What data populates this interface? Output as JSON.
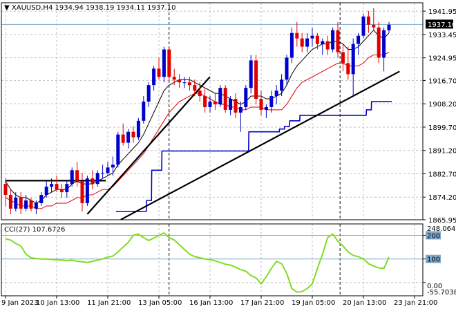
{
  "header": {
    "symbol_timeframe": "XAUUSD,H4",
    "ohlc": "1934.94 1938.19 1934.11 1937.10"
  },
  "current_price_label": "1937.10",
  "cci": {
    "label": "CCI(27) 107.6726",
    "value": 107.6726,
    "period": 27,
    "scale_max_label": "248.0641",
    "scale_min_label": "-55.7038",
    "y_ticks": [
      "200",
      "100",
      "0.00"
    ],
    "levels": [
      200,
      100
    ]
  },
  "colors": {
    "up_candle": "#0000cc",
    "down_candle": "#e00000",
    "fast_ma": "#000000",
    "slow_ma": "#e00000",
    "stop_line": "#0000cc",
    "trendline": "#000000",
    "cci_line": "#7fdd22",
    "cci_level": "#7fa7c9",
    "grid": "#c0c0c0",
    "price_tag_bg": "#000000"
  },
  "chart_data": [
    {
      "type": "candlestick",
      "symbol": "XAUUSD",
      "timeframe": "H4",
      "ylim": [
        1865.95,
        1945.0
      ],
      "y_ticks": [
        "1941.95",
        "1933.45",
        "1924.95",
        "1916.70",
        "1908.20",
        "1899.70",
        "1891.20",
        "1882.70",
        "1874.20",
        "1865.95"
      ],
      "x_ticks": [
        "9 Jan 2023",
        "10 Jan 13:00",
        "11 Jan 21:00",
        "13 Jan 05:00",
        "16 Jan 13:00",
        "17 Jan 21:00",
        "19 Jan 05:00",
        "20 Jan 13:00",
        "23 Jan 21:00"
      ],
      "candles": [
        [
          1879,
          1881,
          1871,
          1875
        ],
        [
          1875,
          1877,
          1868,
          1870
        ],
        [
          1870,
          1876,
          1869,
          1874
        ],
        [
          1874,
          1876,
          1868,
          1870
        ],
        [
          1870,
          1875,
          1869,
          1873
        ],
        [
          1873,
          1874,
          1869,
          1870
        ],
        [
          1870,
          1873,
          1868,
          1872
        ],
        [
          1872,
          1876,
          1871,
          1875
        ],
        [
          1875,
          1880,
          1874,
          1878
        ],
        [
          1878,
          1881,
          1876,
          1879
        ],
        [
          1879,
          1882,
          1876,
          1877
        ],
        [
          1877,
          1879,
          1874,
          1876
        ],
        [
          1876,
          1880,
          1874,
          1879
        ],
        [
          1879,
          1885,
          1878,
          1884
        ],
        [
          1884,
          1887,
          1878,
          1880
        ],
        [
          1880,
          1883,
          1869,
          1872
        ],
        [
          1872,
          1882,
          1871,
          1881
        ],
        [
          1881,
          1884,
          1877,
          1879
        ],
        [
          1879,
          1884,
          1878,
          1883
        ],
        [
          1883,
          1886,
          1881,
          1883
        ],
        [
          1883,
          1887,
          1882,
          1885
        ],
        [
          1885,
          1889,
          1882,
          1886
        ],
        [
          1886,
          1898,
          1885,
          1897
        ],
        [
          1897,
          1901,
          1893,
          1894
        ],
        [
          1894,
          1899,
          1892,
          1898
        ],
        [
          1898,
          1900,
          1894,
          1896
        ],
        [
          1896,
          1903,
          1895,
          1902
        ],
        [
          1902,
          1911,
          1901,
          1909
        ],
        [
          1909,
          1916,
          1907,
          1915
        ],
        [
          1915,
          1922,
          1913,
          1921
        ],
        [
          1921,
          1925,
          1917,
          1918
        ],
        [
          1918,
          1929,
          1916,
          1928
        ],
        [
          1928,
          1929,
          1916,
          1918
        ],
        [
          1918,
          1921,
          1915,
          1917
        ],
        [
          1917,
          1919,
          1914,
          1916
        ],
        [
          1916,
          1918,
          1914,
          1916
        ],
        [
          1916,
          1918,
          1913,
          1915
        ],
        [
          1915,
          1917,
          1911,
          1913
        ],
        [
          1913,
          1916,
          1909,
          1911
        ],
        [
          1911,
          1914,
          1905,
          1907
        ],
        [
          1907,
          1911,
          1905,
          1909
        ],
        [
          1909,
          1912,
          1906,
          1908
        ],
        [
          1908,
          1915,
          1907,
          1914
        ],
        [
          1914,
          1915,
          1905,
          1906
        ],
        [
          1906,
          1911,
          1904,
          1910
        ],
        [
          1910,
          1912,
          1903,
          1905
        ],
        [
          1905,
          1909,
          1898,
          1907
        ],
        [
          1907,
          1915,
          1906,
          1914
        ],
        [
          1914,
          1926,
          1912,
          1924
        ],
        [
          1924,
          1926,
          1908,
          1910
        ],
        [
          1910,
          1913,
          1904,
          1906
        ],
        [
          1906,
          1908,
          1903,
          1907
        ],
        [
          1907,
          1913,
          1905,
          1911
        ],
        [
          1911,
          1915,
          1908,
          1913
        ],
        [
          1913,
          1919,
          1911,
          1917
        ],
        [
          1917,
          1926,
          1915,
          1925
        ],
        [
          1925,
          1936,
          1923,
          1934
        ],
        [
          1934,
          1938,
          1929,
          1932
        ],
        [
          1932,
          1934,
          1927,
          1929
        ],
        [
          1929,
          1934,
          1927,
          1932
        ],
        [
          1932,
          1936,
          1929,
          1933
        ],
        [
          1933,
          1934,
          1928,
          1930
        ],
        [
          1930,
          1932,
          1926,
          1931
        ],
        [
          1931,
          1933,
          1926,
          1928
        ],
        [
          1928,
          1936,
          1927,
          1935
        ],
        [
          1935,
          1938,
          1925,
          1927
        ],
        [
          1927,
          1930,
          1920,
          1923
        ],
        [
          1923,
          1929,
          1917,
          1919
        ],
        [
          1919,
          1932,
          1911,
          1930
        ],
        [
          1930,
          1934,
          1926,
          1933
        ],
        [
          1933,
          1941,
          1932,
          1940
        ],
        [
          1940,
          1942,
          1934,
          1937
        ],
        [
          1937,
          1943,
          1935,
          1936
        ],
        [
          1936,
          1938,
          1923,
          1925
        ],
        [
          1925,
          1936,
          1920,
          1935
        ],
        [
          1935,
          1938,
          1934,
          1937
        ]
      ],
      "fast_ma": [
        1880,
        1877,
        1875,
        1874,
        1874,
        1873,
        1872,
        1873,
        1875,
        1876,
        1877,
        1877,
        1877,
        1879,
        1880,
        1879,
        1879,
        1879,
        1880,
        1881,
        1882,
        1883,
        1886,
        1888,
        1890,
        1892,
        1894,
        1897,
        1901,
        1905,
        1909,
        1913,
        1915,
        1916,
        1917,
        1917,
        1917,
        1916,
        1915,
        1914,
        1913,
        1912,
        1912,
        1911,
        1910,
        1909,
        1908,
        1909,
        1911,
        1911,
        1911,
        1910,
        1910,
        1911,
        1912,
        1915,
        1919,
        1922,
        1924,
        1926,
        1928,
        1929,
        1930,
        1930,
        1931,
        1931,
        1930,
        1928,
        1928,
        1929,
        1931,
        1933,
        1935,
        1933,
        1932,
        1934
      ],
      "slow_ma": [
        1874,
        1873,
        1872,
        1871,
        1871,
        1871,
        1870,
        1870,
        1871,
        1871,
        1872,
        1872,
        1872,
        1873,
        1874,
        1874,
        1875,
        1875,
        1876,
        1877,
        1877,
        1878,
        1880,
        1882,
        1884,
        1886,
        1888,
        1890,
        1893,
        1896,
        1899,
        1902,
        1905,
        1907,
        1909,
        1910,
        1911,
        1912,
        1912,
        1911,
        1910,
        1909,
        1908,
        1908,
        1907,
        1907,
        1906,
        1906,
        1907,
        1907,
        1907,
        1906,
        1906,
        1906,
        1906,
        1908,
        1911,
        1914,
        1916,
        1917,
        1918,
        1919,
        1920,
        1921,
        1922,
        1923,
        1923,
        1922,
        1922,
        1922,
        1923,
        1925,
        1926,
        1926,
        1926,
        1927
      ],
      "stop_line": [
        null,
        null,
        null,
        null,
        null,
        null,
        null,
        null,
        null,
        null,
        null,
        null,
        null,
        null,
        null,
        null,
        null,
        null,
        null,
        null,
        null,
        null,
        1869,
        1869,
        1869,
        1869,
        1869,
        1869,
        1873,
        1884,
        1884,
        1891,
        1891,
        1891,
        1891,
        1891,
        1891,
        1891,
        1891,
        1891,
        1891,
        1891,
        1891,
        1891,
        1891,
        1891,
        1891,
        1891,
        1898,
        1898,
        1898,
        1898,
        1898,
        1898,
        1899,
        1900,
        1902,
        1902,
        1904,
        1904,
        1904,
        1904,
        1904,
        1904,
        1904,
        1904,
        1904,
        1904,
        1904,
        1904,
        1904,
        1906,
        1909,
        1909,
        1909,
        1909
      ],
      "trendlines": [
        {
          "from": [
            0,
            1880.2
          ],
          "to": [
            27,
            1880.2
          ]
        },
        {
          "from": [
            22,
            1868
          ],
          "to": [
            55,
            1918
          ]
        },
        {
          "from": [
            31,
            1866
          ],
          "to": [
            106,
            1920
          ]
        }
      ],
      "vlines": [
        44,
        90
      ]
    },
    {
      "type": "line",
      "name": "CCI(27)",
      "ylim": [
        -55.7038,
        248.0641
      ],
      "levels": [
        200,
        100
      ],
      "values": [
        185,
        180,
        165,
        155,
        120,
        105,
        102,
        100,
        100,
        98,
        96,
        95,
        93,
        95,
        90,
        88,
        85,
        90,
        95,
        100,
        108,
        112,
        130,
        150,
        170,
        200,
        205,
        190,
        178,
        188,
        200,
        210,
        190,
        180,
        160,
        140,
        120,
        110,
        105,
        100,
        97,
        92,
        85,
        78,
        74,
        65,
        55,
        48,
        30,
        20,
        -5,
        25,
        60,
        90,
        80,
        40,
        -25,
        -40,
        -38,
        -25,
        -5,
        60,
        120,
        190,
        205,
        175,
        155,
        130,
        115,
        110,
        100,
        80,
        70,
        62,
        60,
        108
      ]
    }
  ]
}
